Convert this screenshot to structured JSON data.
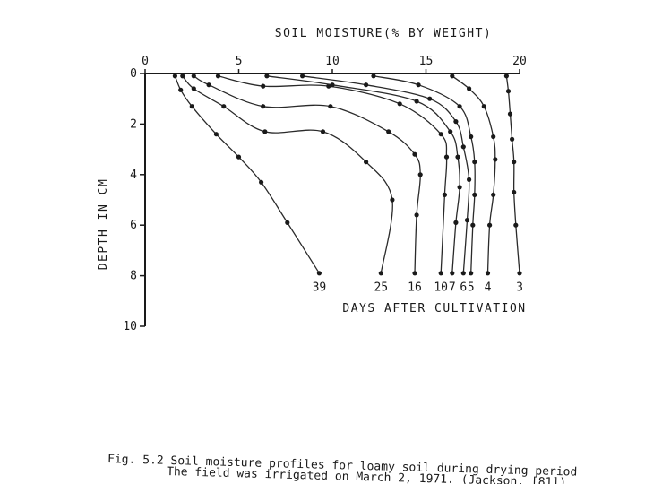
{
  "chart_data": {
    "type": "line",
    "title": "",
    "xlabel": "SOIL MOISTURE(% BY WEIGHT)",
    "ylabel": "DEPTH IN CM",
    "series_label_caption": "DAYS AFTER CULTIVATION",
    "xlim": [
      0,
      20
    ],
    "ylim": [
      0,
      10
    ],
    "x_ticks": [
      "0",
      "5",
      "10",
      "15",
      "20"
    ],
    "y_ticks": [
      "0",
      "2",
      "4",
      "6",
      "8",
      "10"
    ],
    "x_tick_values": [
      0,
      5,
      10,
      15,
      20
    ],
    "y_tick_values": [
      0,
      2,
      4,
      6,
      8,
      10
    ],
    "x_axis_position": "top",
    "y_axis_inverted": true,
    "grid": false,
    "series": [
      {
        "name": "39",
        "points": [
          [
            1.6,
            0.1
          ],
          [
            1.9,
            0.65
          ],
          [
            2.5,
            1.3
          ],
          [
            3.8,
            2.4
          ],
          [
            5.0,
            3.3
          ],
          [
            6.2,
            4.3
          ],
          [
            7.6,
            5.9
          ],
          [
            9.3,
            7.9
          ]
        ]
      },
      {
        "name": "25",
        "points": [
          [
            2.0,
            0.1
          ],
          [
            2.6,
            0.6
          ],
          [
            4.2,
            1.3
          ],
          [
            6.4,
            2.3
          ],
          [
            9.5,
            2.3
          ],
          [
            11.8,
            3.5
          ],
          [
            13.2,
            5.0
          ],
          [
            12.6,
            7.9
          ]
        ]
      },
      {
        "name": "16",
        "points": [
          [
            2.6,
            0.1
          ],
          [
            3.4,
            0.45
          ],
          [
            6.3,
            1.3
          ],
          [
            9.9,
            1.3
          ],
          [
            13.0,
            2.3
          ],
          [
            14.4,
            3.2
          ],
          [
            14.7,
            4.0
          ],
          [
            14.5,
            5.6
          ],
          [
            14.4,
            7.9
          ]
        ]
      },
      {
        "name": "10",
        "points": [
          [
            3.9,
            0.1
          ],
          [
            6.3,
            0.5
          ],
          [
            9.8,
            0.5
          ],
          [
            13.6,
            1.2
          ],
          [
            15.8,
            2.4
          ],
          [
            16.1,
            3.3
          ],
          [
            16.0,
            4.8
          ],
          [
            15.8,
            7.9
          ]
        ]
      },
      {
        "name": "7",
        "points": [
          [
            6.5,
            0.1
          ],
          [
            10.0,
            0.45
          ],
          [
            14.5,
            1.1
          ],
          [
            16.3,
            2.3
          ],
          [
            16.7,
            3.3
          ],
          [
            16.8,
            4.5
          ],
          [
            16.6,
            5.9
          ],
          [
            16.4,
            7.9
          ]
        ]
      },
      {
        "name": "6",
        "points": [
          [
            8.4,
            0.1
          ],
          [
            11.8,
            0.45
          ],
          [
            15.2,
            1.0
          ],
          [
            16.6,
            1.9
          ],
          [
            17.0,
            2.9
          ],
          [
            17.3,
            4.2
          ],
          [
            17.2,
            5.8
          ],
          [
            17.0,
            7.9
          ]
        ]
      },
      {
        "name": "5",
        "points": [
          [
            12.2,
            0.1
          ],
          [
            14.6,
            0.45
          ],
          [
            16.8,
            1.3
          ],
          [
            17.4,
            2.5
          ],
          [
            17.6,
            3.5
          ],
          [
            17.6,
            4.8
          ],
          [
            17.5,
            6.0
          ],
          [
            17.4,
            7.9
          ]
        ]
      },
      {
        "name": "4",
        "points": [
          [
            16.4,
            0.1
          ],
          [
            17.3,
            0.6
          ],
          [
            18.1,
            1.3
          ],
          [
            18.6,
            2.5
          ],
          [
            18.7,
            3.4
          ],
          [
            18.6,
            4.8
          ],
          [
            18.4,
            6.0
          ],
          [
            18.3,
            7.9
          ]
        ]
      },
      {
        "name": "3",
        "points": [
          [
            19.3,
            0.1
          ],
          [
            19.4,
            0.7
          ],
          [
            19.5,
            1.6
          ],
          [
            19.6,
            2.6
          ],
          [
            19.7,
            3.5
          ],
          [
            19.7,
            4.7
          ],
          [
            19.8,
            6.0
          ],
          [
            20.0,
            7.9
          ]
        ]
      }
    ],
    "series_label_values": [
      "39",
      "25",
      "16",
      "10",
      "7",
      "6",
      "5",
      "4",
      "3"
    ]
  },
  "caption": {
    "line1": "Fig. 5.2 Soil  moisture profiles for loamy soil during drying period",
    "line2": "The field was irrigated on March 2, 1971. (Jackson, [81])."
  }
}
